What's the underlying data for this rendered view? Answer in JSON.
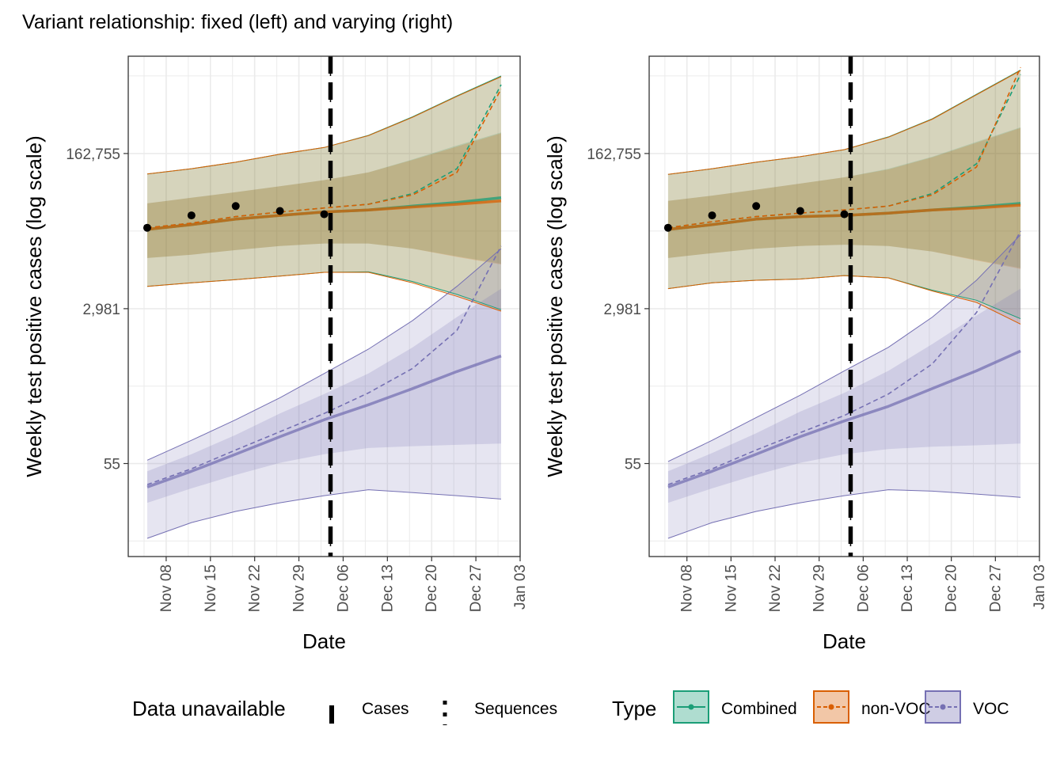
{
  "figure_title": "Variant relationship: fixed (left) and varying (right)",
  "colors": {
    "combined": "#1b9e77",
    "non_voc": "#d95f02",
    "voc": "#7570b3",
    "observed": "#000000",
    "grid": "#ebebeb"
  },
  "legend": {
    "data_unavailable_title": "Data unavailable",
    "cases_label": "Cases",
    "sequences_label": "Sequences",
    "type_title": "Type",
    "items": [
      {
        "key": "combined",
        "label": "Combined"
      },
      {
        "key": "non_voc",
        "label": "non-VOC"
      },
      {
        "key": "voc",
        "label": "VOC"
      }
    ]
  },
  "chart_data": [
    {
      "type": "line",
      "panel": "fixed (left)",
      "xlabel": "Date",
      "ylabel": "Weekly test positive cases (log scale)",
      "y_scale": "log",
      "x_ticks": [
        "Nov 08",
        "Nov 15",
        "Nov 22",
        "Nov 29",
        "Dec 06",
        "Dec 13",
        "Dec 20",
        "Dec 27",
        "Jan 03"
      ],
      "y_ticks": [
        55,
        2981,
        162755
      ],
      "y_tick_labels": [
        "55",
        "2,981",
        "162,755"
      ],
      "xlim": [
        "2020-11-02",
        "2021-01-03"
      ],
      "ylim": [
        5,
        2000000
      ],
      "vline": {
        "cases": "2020-12-04",
        "sequences": "2020-12-04"
      },
      "x": [
        "2020-11-05",
        "2020-11-12",
        "2020-11-19",
        "2020-11-26",
        "2020-12-03",
        "2020-12-10",
        "2020-12-17",
        "2020-12-24",
        "2020-12-31"
      ],
      "observed": {
        "x": [
          "2020-11-05",
          "2020-11-12",
          "2020-11-19",
          "2020-11-26",
          "2020-12-03"
        ],
        "y": [
          24000,
          33000,
          42000,
          37000,
          34000
        ]
      },
      "series": [
        {
          "name": "Combined",
          "key": "combined",
          "median": [
            23000,
            26000,
            30000,
            33000,
            36000,
            38000,
            42000,
            46000,
            52000
          ],
          "dashed": [
            24000,
            27000,
            32000,
            36000,
            40000,
            44000,
            58000,
            110000,
            960000
          ],
          "inner_lower": [
            11000,
            12000,
            13500,
            15000,
            16000,
            16000,
            14000,
            11500,
            9500
          ],
          "inner_upper": [
            45000,
            52000,
            60000,
            70000,
            82000,
            100000,
            140000,
            200000,
            280000
          ],
          "outer_lower": [
            5300,
            5800,
            6300,
            6900,
            7600,
            7700,
            6000,
            4300,
            2900
          ],
          "outer_upper": [
            96000,
            110000,
            130000,
            160000,
            190000,
            260000,
            420000,
            720000,
            1200000
          ]
        },
        {
          "name": "non-VOC",
          "key": "non_voc",
          "median": [
            23000,
            26000,
            30000,
            33000,
            36000,
            38000,
            41000,
            44000,
            48000
          ],
          "dashed": [
            24000,
            27000,
            32000,
            36000,
            40000,
            44000,
            56000,
            100000,
            860000
          ],
          "inner_lower": [
            11000,
            12000,
            13500,
            15000,
            16000,
            16000,
            14000,
            11300,
            9300
          ],
          "inner_upper": [
            45000,
            52000,
            60000,
            70000,
            82000,
            100000,
            138000,
            195000,
            275000
          ],
          "outer_lower": [
            5300,
            5800,
            6300,
            6900,
            7600,
            7600,
            5800,
            4100,
            2800
          ],
          "outer_upper": [
            96000,
            110000,
            130000,
            160000,
            190000,
            258000,
            415000,
            710000,
            1180000
          ]
        },
        {
          "name": "VOC",
          "key": "voc",
          "median": [
            30,
            45,
            70,
            110,
            170,
            250,
            380,
            590,
            880
          ],
          "dashed": [
            32,
            48,
            78,
            125,
            200,
            340,
            640,
            1700,
            15000
          ],
          "inner_lower": [
            20,
            29,
            41,
            56,
            70,
            82,
            86,
            89,
            92
          ],
          "inner_upper": [
            45,
            70,
            115,
            200,
            330,
            560,
            1100,
            2400,
            5000
          ],
          "outer_lower": [
            8,
            12,
            16,
            20,
            24,
            28,
            26,
            24,
            22
          ],
          "outer_upper": [
            60,
            100,
            170,
            300,
            560,
            1050,
            2200,
            5300,
            14000
          ]
        }
      ]
    },
    {
      "type": "line",
      "panel": "varying (right)",
      "xlabel": "Date",
      "ylabel": "Weekly test positive cases (log scale)",
      "y_scale": "log",
      "x_ticks": [
        "Nov 08",
        "Nov 15",
        "Nov 22",
        "Nov 29",
        "Dec 06",
        "Dec 13",
        "Dec 20",
        "Dec 27",
        "Jan 03"
      ],
      "y_ticks": [
        55,
        2981,
        162755
      ],
      "y_tick_labels": [
        "55",
        "2,981",
        "162,755"
      ],
      "xlim": [
        "2020-11-02",
        "2021-01-03"
      ],
      "ylim": [
        5,
        2000000
      ],
      "vline": {
        "cases": "2020-12-04",
        "sequences": "2020-12-04"
      },
      "x": [
        "2020-11-05",
        "2020-11-12",
        "2020-11-19",
        "2020-11-26",
        "2020-12-03",
        "2020-12-10",
        "2020-12-17",
        "2020-12-24",
        "2020-12-31"
      ],
      "observed": {
        "x": [
          "2020-11-05",
          "2020-11-12",
          "2020-11-19",
          "2020-11-26",
          "2020-12-03"
        ],
        "y": [
          24000,
          33000,
          42000,
          37000,
          34000
        ]
      },
      "series": [
        {
          "name": "Combined",
          "key": "combined",
          "median": [
            23000,
            26000,
            30000,
            32000,
            33000,
            35000,
            38000,
            41000,
            45000
          ],
          "dashed": [
            24000,
            28000,
            32000,
            35000,
            38000,
            42000,
            58000,
            125000,
            1250000
          ],
          "inner_lower": [
            11000,
            12500,
            14000,
            15000,
            15500,
            15000,
            13000,
            10500,
            8500
          ],
          "inner_upper": [
            48000,
            55000,
            64000,
            75000,
            88000,
            110000,
            150000,
            220000,
            320000
          ],
          "outer_lower": [
            5000,
            5800,
            6200,
            6400,
            7000,
            6600,
            4800,
            3700,
            2300
          ],
          "outer_upper": [
            95000,
            110000,
            130000,
            150000,
            180000,
            250000,
            400000,
            750000,
            1400000
          ]
        },
        {
          "name": "non-VOC",
          "key": "non_voc",
          "median": [
            23000,
            26000,
            30000,
            32000,
            33000,
            35000,
            38000,
            40000,
            43000
          ],
          "dashed": [
            24000,
            28000,
            32000,
            35000,
            38000,
            42000,
            56000,
            115000,
            1500000
          ],
          "inner_lower": [
            11000,
            12500,
            14000,
            15000,
            15500,
            15000,
            13000,
            10300,
            8300
          ],
          "inner_upper": [
            48000,
            55000,
            64000,
            75000,
            88000,
            108000,
            148000,
            215000,
            315000
          ],
          "outer_lower": [
            5000,
            5800,
            6200,
            6400,
            7000,
            6600,
            4700,
            3500,
            2000
          ],
          "outer_upper": [
            95000,
            110000,
            130000,
            150000,
            180000,
            248000,
            395000,
            740000,
            1380000
          ]
        },
        {
          "name": "VOC",
          "key": "voc",
          "median": [
            30,
            45,
            70,
            110,
            165,
            240,
            380,
            600,
            1000
          ],
          "dashed": [
            32,
            48,
            78,
            122,
            190,
            330,
            720,
            2700,
            22000
          ],
          "inner_lower": [
            20,
            29,
            41,
            56,
            70,
            80,
            85,
            88,
            92
          ],
          "inner_upper": [
            45,
            72,
            120,
            210,
            340,
            600,
            1200,
            2500,
            5000
          ],
          "outer_lower": [
            8,
            12,
            16,
            20,
            24,
            28,
            27,
            25,
            23
          ],
          "outer_upper": [
            58,
            100,
            180,
            320,
            600,
            1100,
            2400,
            6200,
            20000
          ]
        }
      ]
    }
  ]
}
